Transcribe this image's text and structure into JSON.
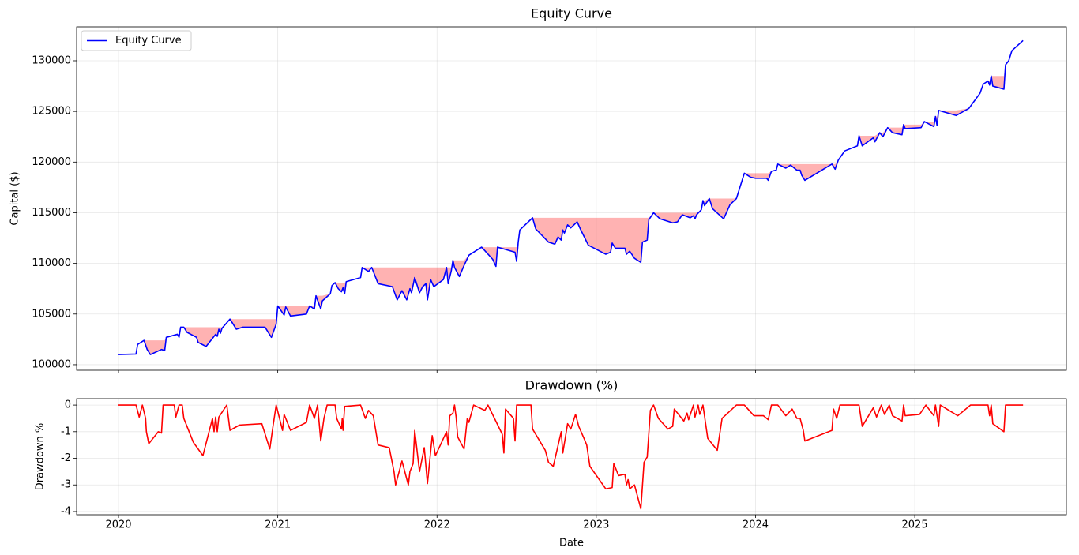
{
  "chart_data": [
    {
      "type": "line",
      "title": "Equity Curve",
      "ylabel": "Capital ($)",
      "x": [
        2020.0,
        2020.11,
        2020.12,
        2020.16,
        2020.18,
        2020.2,
        2020.27,
        2020.29,
        2020.3,
        2020.37,
        2020.38,
        2020.39,
        2020.41,
        2020.43,
        2020.49,
        2020.5,
        2020.55,
        2020.61,
        2020.62,
        2020.63,
        2020.64,
        2020.65,
        2020.7,
        2020.74,
        2020.78,
        2020.92,
        2020.96,
        2020.99,
        2021.0,
        2021.04,
        2021.05,
        2021.08,
        2021.18,
        2021.2,
        2021.23,
        2021.24,
        2021.27,
        2021.28,
        2021.33,
        2021.34,
        2021.36,
        2021.38,
        2021.4,
        2021.41,
        2021.42,
        2021.43,
        2021.52,
        2021.53,
        2021.57,
        2021.59,
        2021.63,
        2021.72,
        2021.75,
        2021.78,
        2021.81,
        2021.83,
        2021.84,
        2021.86,
        2021.89,
        2021.91,
        2021.93,
        2021.94,
        2021.96,
        2021.98,
        2022.04,
        2022.06,
        2022.07,
        2022.09,
        2022.1,
        2022.11,
        2022.14,
        2022.17,
        2022.2,
        2022.28,
        2022.35,
        2022.37,
        2022.38,
        2022.49,
        2022.5,
        2022.51,
        2022.52,
        2022.6,
        2022.62,
        2022.7,
        2022.74,
        2022.76,
        2022.78,
        2022.79,
        2022.8,
        2022.82,
        2022.84,
        2022.88,
        2022.9,
        2022.95,
        2023.06,
        2023.09,
        2023.1,
        2023.12,
        2023.18,
        2023.19,
        2023.21,
        2023.24,
        2023.28,
        2023.29,
        2023.32,
        2023.33,
        2023.36,
        2023.4,
        2023.48,
        2023.51,
        2023.54,
        2023.59,
        2023.61,
        2023.62,
        2023.63,
        2023.66,
        2023.67,
        2023.68,
        2023.71,
        2023.73,
        2023.8,
        2023.84,
        2023.88,
        2023.93,
        2023.97,
        2024.0,
        2024.07,
        2024.08,
        2024.1,
        2024.13,
        2024.14,
        2024.19,
        2024.22,
        2024.26,
        2024.28,
        2024.29,
        2024.31,
        2024.48,
        2024.5,
        2024.52,
        2024.56,
        2024.64,
        2024.65,
        2024.67,
        2024.74,
        2024.75,
        2024.78,
        2024.8,
        2024.83,
        2024.86,
        2024.92,
        2024.93,
        2024.94,
        2025.04,
        2025.06,
        2025.12,
        2025.13,
        2025.14,
        2025.15,
        2025.26,
        2025.34,
        2025.41,
        2025.43,
        2025.46,
        2025.47,
        2025.48,
        2025.49,
        2025.56,
        2025.57,
        2025.59,
        2025.61,
        2025.68
      ],
      "series": [
        {
          "name": "Equity Curve",
          "color": "#0000ff",
          "values": [
            101000,
            101050,
            102000,
            102400,
            101500,
            101000,
            101500,
            101400,
            102700,
            103000,
            102700,
            103700,
            103700,
            103200,
            102700,
            102200,
            101800,
            103000,
            102800,
            103500,
            103100,
            103600,
            104500,
            103500,
            103700,
            103700,
            102700,
            104000,
            105800,
            104900,
            105700,
            104800,
            105000,
            105800,
            105500,
            106800,
            105500,
            106300,
            107000,
            107800,
            108100,
            107500,
            107200,
            107600,
            107000,
            108200,
            108600,
            109600,
            109200,
            109600,
            108000,
            107700,
            106400,
            107300,
            106400,
            107500,
            107100,
            108600,
            107100,
            107700,
            108000,
            106400,
            108400,
            107700,
            108400,
            109600,
            108000,
            109300,
            110300,
            109600,
            108700,
            109800,
            110800,
            111600,
            110400,
            109700,
            111600,
            111100,
            110200,
            112100,
            113300,
            114500,
            113400,
            112100,
            111900,
            112600,
            112300,
            113300,
            113000,
            113800,
            113500,
            114100,
            113400,
            111800,
            110900,
            111100,
            112000,
            111500,
            111500,
            110900,
            111200,
            110500,
            110100,
            112100,
            112300,
            114300,
            115000,
            114400,
            114000,
            114100,
            114800,
            114500,
            114700,
            114400,
            114800,
            115300,
            116200,
            115700,
            116400,
            115400,
            114400,
            115800,
            116400,
            118900,
            118500,
            118400,
            118400,
            118200,
            119100,
            119200,
            119800,
            119400,
            119700,
            119200,
            119200,
            118700,
            118200,
            119800,
            119300,
            120200,
            121100,
            121600,
            122600,
            121600,
            122400,
            122000,
            122900,
            122500,
            123400,
            122900,
            122700,
            123700,
            123300,
            123400,
            124000,
            123500,
            124500,
            123600,
            125100,
            124600,
            125300,
            126800,
            127700,
            128000,
            127600,
            128500,
            127500,
            127200,
            129600,
            130000,
            131000,
            132000
          ]
        }
      ],
      "xlim": [
        2019.737,
        2025.952
      ],
      "ylim": [
        99450,
        133350
      ],
      "xticks": [
        2020,
        2021,
        2022,
        2023,
        2024,
        2025
      ],
      "yticks": [
        100000,
        105000,
        110000,
        115000,
        120000,
        125000,
        130000
      ],
      "grid": true,
      "legend": "upper left",
      "show_xtick_labels": false,
      "fill_under_peak": true,
      "fill_color": "#ff0000"
    },
    {
      "type": "line",
      "title": "Drawdown (%)",
      "ylabel": "Drawdown %",
      "xlabel": "Date",
      "x": [
        2020.0,
        2020.11,
        2020.13,
        2020.15,
        2020.17,
        2020.175,
        2020.19,
        2020.25,
        2020.27,
        2020.28,
        2020.35,
        2020.36,
        2020.38,
        2020.4,
        2020.41,
        2020.47,
        2020.53,
        2020.59,
        2020.6,
        2020.61,
        2020.62,
        2020.63,
        2020.68,
        2020.7,
        2020.76,
        2020.9,
        2020.95,
        2020.97,
        2020.99,
        2021.03,
        2021.04,
        2021.08,
        2021.18,
        2021.2,
        2021.23,
        2021.25,
        2021.27,
        2021.29,
        2021.31,
        2021.36,
        2021.37,
        2021.4,
        2021.405,
        2021.41,
        2021.42,
        2021.52,
        2021.55,
        2021.57,
        2021.6,
        2021.63,
        2021.7,
        2021.73,
        2021.74,
        2021.78,
        2021.82,
        2021.83,
        2021.85,
        2021.86,
        2021.89,
        2021.92,
        2021.94,
        2021.97,
        2021.99,
        2022.06,
        2022.07,
        2022.08,
        2022.1,
        2022.11,
        2022.12,
        2022.13,
        2022.17,
        2022.19,
        2022.2,
        2022.23,
        2022.3,
        2022.32,
        2022.41,
        2022.42,
        2022.43,
        2022.48,
        2022.49,
        2022.5,
        2022.59,
        2022.6,
        2022.68,
        2022.7,
        2022.73,
        2022.78,
        2022.79,
        2022.82,
        2022.84,
        2022.87,
        2022.89,
        2022.93,
        2022.94,
        2022.96,
        2023.06,
        2023.1,
        2023.11,
        2023.14,
        2023.18,
        2023.19,
        2023.2,
        2023.21,
        2023.24,
        2023.28,
        2023.3,
        2023.32,
        2023.34,
        2023.36,
        2023.39,
        2023.45,
        2023.48,
        2023.49,
        2023.55,
        2023.57,
        2023.58,
        2023.61,
        2023.62,
        2023.64,
        2023.65,
        2023.67,
        2023.7,
        2023.76,
        2023.79,
        2023.88,
        2023.93,
        2023.99,
        2024.05,
        2024.08,
        2024.1,
        2024.14,
        2024.19,
        2024.23,
        2024.26,
        2024.28,
        2024.3,
        2024.31,
        2024.48,
        2024.49,
        2024.51,
        2024.53,
        2024.65,
        2024.67,
        2024.74,
        2024.76,
        2024.79,
        2024.81,
        2024.84,
        2024.86,
        2024.92,
        2024.93,
        2024.94,
        2025.03,
        2025.07,
        2025.12,
        2025.13,
        2025.15,
        2025.16,
        2025.27,
        2025.35,
        2025.46,
        2025.47,
        2025.48,
        2025.49,
        2025.56,
        2025.57,
        2025.68
      ],
      "series": [
        {
          "color": "#ff0000",
          "values": [
            0,
            0,
            -0.45,
            0,
            -0.5,
            -1.0,
            -1.45,
            -1.0,
            -1.05,
            0,
            0,
            -0.45,
            0,
            0,
            -0.5,
            -1.4,
            -1.9,
            -0.5,
            -1.0,
            -0.45,
            -1.0,
            -0.45,
            0,
            -0.95,
            -0.75,
            -0.7,
            -1.65,
            -0.8,
            0,
            -0.95,
            -0.35,
            -0.95,
            -0.65,
            0,
            -0.5,
            0,
            -1.35,
            -0.5,
            0,
            0,
            -0.5,
            -0.9,
            -0.5,
            -0.95,
            -0.05,
            0,
            -0.5,
            -0.2,
            -0.4,
            -1.5,
            -1.6,
            -2.5,
            -3.0,
            -2.1,
            -3.0,
            -2.5,
            -2.2,
            -0.95,
            -2.5,
            -1.6,
            -2.95,
            -1.15,
            -1.9,
            -1.0,
            -1.5,
            -0.4,
            -0.3,
            0,
            -0.45,
            -1.2,
            -1.65,
            -0.5,
            -0.65,
            0,
            -0.2,
            0,
            -1.1,
            -1.8,
            -0.15,
            -0.5,
            -1.35,
            0,
            0,
            -0.9,
            -1.7,
            -2.15,
            -2.3,
            -1.0,
            -1.8,
            -0.7,
            -0.9,
            -0.35,
            -0.8,
            -1.35,
            -1.5,
            -2.3,
            -3.15,
            -3.1,
            -2.2,
            -2.65,
            -2.6,
            -3.0,
            -2.8,
            -3.15,
            -3.0,
            -3.9,
            -2.15,
            -1.95,
            -0.2,
            0,
            -0.5,
            -0.9,
            -0.8,
            -0.15,
            -0.6,
            -0.3,
            -0.55,
            0,
            -0.45,
            0,
            -0.35,
            0,
            -1.25,
            -1.7,
            -0.5,
            0,
            0,
            -0.4,
            -0.4,
            -0.55,
            0,
            0,
            -0.4,
            -0.15,
            -0.5,
            -0.5,
            -0.95,
            -1.35,
            -0.95,
            -0.15,
            -0.5,
            0,
            0,
            -0.8,
            -0.1,
            -0.45,
            0,
            -0.35,
            0,
            -0.4,
            -0.6,
            0,
            -0.4,
            -0.35,
            0,
            -0.4,
            0,
            -0.8,
            0,
            -0.4,
            0,
            0,
            -0.4,
            0,
            -0.7,
            -1.0,
            0,
            0
          ]
        }
      ],
      "xlim": [
        2019.737,
        2025.952
      ],
      "ylim": [
        -4.12,
        0.24
      ],
      "xticks": [
        2020,
        2021,
        2022,
        2023,
        2024,
        2025
      ],
      "yticks": [
        -4,
        -3,
        -2,
        -1,
        0
      ],
      "grid": true,
      "show_xtick_labels": true
    }
  ]
}
